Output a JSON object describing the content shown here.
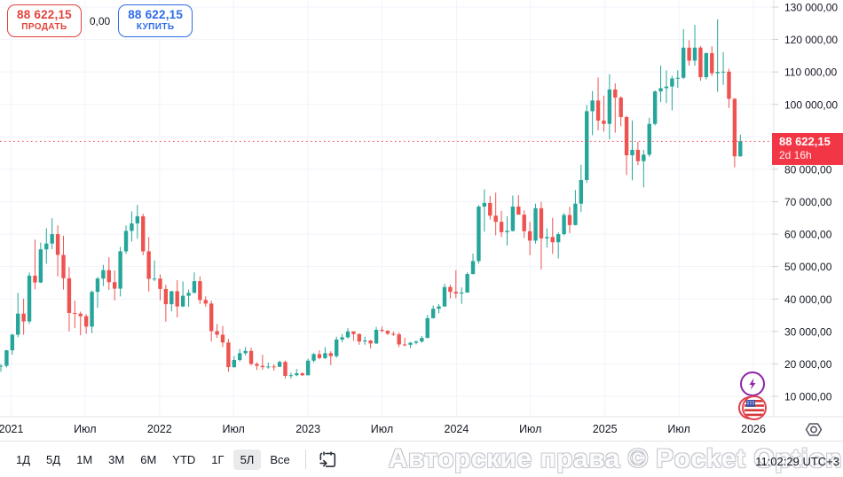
{
  "header": {
    "sell_price": "88 622,15",
    "sell_label": "ПРОДАТЬ",
    "spread": "0,00",
    "buy_price": "88 622,15",
    "buy_label": "КУПИТЬ"
  },
  "price_label": {
    "price": "88 622,15",
    "countdown": "2d 16h"
  },
  "watermark": "Авторские права © Pocket Option",
  "clock": "11:02:29 UTC+3",
  "toolbar": {
    "ranges": [
      "1Д",
      "5Д",
      "1М",
      "3М",
      "6М",
      "YTD",
      "1Г",
      "5Л",
      "Все"
    ],
    "selected": "5Л"
  },
  "icons": {
    "calendar": "goto-date-calendar-arrow",
    "gear": "axis-settings-hexagon",
    "lightning": "economic-event-lightning",
    "flag": "us-flag-news-event"
  },
  "colors": {
    "up": "#26a69a",
    "down": "#ef5350",
    "price_line": "#f23645",
    "badge_bg": "#f23645",
    "sell": "#e0433c",
    "buy": "#2e6ce6",
    "grid": "#f0f3fa",
    "axis_text": "#131722",
    "border": "#e0e3eb"
  },
  "chart_data": {
    "type": "candlestick",
    "symbol_hint": "BTC/USD weekly, 5-year range",
    "y_axis": {
      "min": 10000,
      "max": 130000,
      "step": 10000
    },
    "x_ticks": [
      {
        "label": "2021",
        "idx": 1.8
      },
      {
        "label": "Июл",
        "idx": 14.8
      },
      {
        "label": "2022",
        "idx": 27.9
      },
      {
        "label": "Июл",
        "idx": 40.9
      },
      {
        "label": "2023",
        "idx": 54.0
      },
      {
        "label": "Июл",
        "idx": 67.0
      },
      {
        "label": "2024",
        "idx": 80.1
      },
      {
        "label": "Июл",
        "idx": 93.1
      },
      {
        "label": "2025",
        "idx": 106.2
      },
      {
        "label": "Июл",
        "idx": 119.2
      },
      {
        "label": "2026",
        "idx": 132.3
      }
    ],
    "current_price": 88622.15,
    "candles": [
      [
        "2020-12-07",
        19200,
        19900,
        17600,
        19400
      ],
      [
        "2020-12-21",
        19400,
        24300,
        18900,
        24200
      ],
      [
        "2021-01-04",
        24200,
        29300,
        22800,
        29000
      ],
      [
        "2021-01-18",
        29000,
        41900,
        28200,
        35500
      ],
      [
        "2021-02-01",
        35500,
        40100,
        29000,
        33100
      ],
      [
        "2021-02-15",
        33100,
        48200,
        32300,
        47200
      ],
      [
        "2021-03-01",
        47200,
        58300,
        43000,
        45100
      ],
      [
        "2021-03-15",
        45100,
        57400,
        44900,
        55300
      ],
      [
        "2021-03-29",
        55300,
        61800,
        50900,
        57100
      ],
      [
        "2021-04-12",
        57100,
        64900,
        55400,
        60000
      ],
      [
        "2021-04-26",
        60000,
        62700,
        47000,
        53600
      ],
      [
        "2021-05-10",
        53600,
        59500,
        42900,
        46400
      ],
      [
        "2021-05-24",
        46400,
        49800,
        30000,
        35700
      ],
      [
        "2021-06-07",
        35700,
        39500,
        31000,
        35500
      ],
      [
        "2021-06-21",
        35500,
        36100,
        28800,
        34700
      ],
      [
        "2021-07-05",
        34700,
        35300,
        29300,
        31500
      ],
      [
        "2021-07-19",
        31500,
        42600,
        29500,
        42200
      ],
      [
        "2021-08-02",
        42200,
        46800,
        37300,
        46300
      ],
      [
        "2021-08-16",
        46300,
        50500,
        44000,
        48900
      ],
      [
        "2021-08-30",
        48900,
        52900,
        42800,
        45200
      ],
      [
        "2021-09-13",
        45200,
        48800,
        39600,
        43200
      ],
      [
        "2021-09-27",
        43200,
        56100,
        40800,
        54700
      ],
      [
        "2021-10-11",
        54700,
        62700,
        53900,
        61000
      ],
      [
        "2021-10-25",
        61000,
        67000,
        57700,
        63300
      ],
      [
        "2021-11-08",
        63300,
        69000,
        58600,
        65500
      ],
      [
        "2021-11-22",
        65500,
        66300,
        53500,
        54700
      ],
      [
        "2021-12-06",
        54700,
        59100,
        42300,
        46200
      ],
      [
        "2021-12-20",
        46200,
        51900,
        45500,
        46300
      ],
      [
        "2022-01-03",
        46300,
        47600,
        39600,
        43100
      ],
      [
        "2022-01-17",
        43100,
        44400,
        33000,
        38400
      ],
      [
        "2022-01-31",
        38400,
        42500,
        36200,
        42400
      ],
      [
        "2022-02-14",
        42400,
        45800,
        34300,
        37700
      ],
      [
        "2022-02-28",
        37700,
        45400,
        37500,
        41000
      ],
      [
        "2022-03-14",
        41000,
        42900,
        37600,
        41900
      ],
      [
        "2022-03-28",
        41900,
        48200,
        41800,
        45500
      ],
      [
        "2022-04-11",
        45500,
        47000,
        38500,
        39700
      ],
      [
        "2022-04-25",
        39700,
        40800,
        37600,
        38600
      ],
      [
        "2022-05-09",
        38600,
        39500,
        26900,
        30100
      ],
      [
        "2022-05-23",
        30100,
        32300,
        28000,
        29000
      ],
      [
        "2022-06-06",
        29000,
        31700,
        25200,
        26600
      ],
      [
        "2022-06-20",
        26600,
        27700,
        17600,
        19000
      ],
      [
        "2022-07-04",
        19000,
        22400,
        18800,
        21200
      ],
      [
        "2022-07-18",
        21200,
        24600,
        20700,
        23300
      ],
      [
        "2022-08-01",
        23300,
        25200,
        22600,
        24000
      ],
      [
        "2022-08-15",
        24000,
        25000,
        19500,
        20000
      ],
      [
        "2022-08-29",
        20000,
        20500,
        18100,
        19400
      ],
      [
        "2022-09-12",
        19400,
        22800,
        18200,
        19000
      ],
      [
        "2022-09-26",
        19000,
        20400,
        18500,
        19200
      ],
      [
        "2022-10-10",
        19200,
        19900,
        17900,
        19100
      ],
      [
        "2022-10-24",
        19100,
        21000,
        19000,
        20600
      ],
      [
        "2022-11-07",
        20600,
        21000,
        15500,
        16300
      ],
      [
        "2022-11-21",
        16300,
        17300,
        15500,
        16500
      ],
      [
        "2022-12-05",
        16500,
        18400,
        16200,
        17100
      ],
      [
        "2022-12-19",
        17100,
        17400,
        16300,
        16500
      ],
      [
        "2023-01-02",
        16500,
        21600,
        16400,
        21000
      ],
      [
        "2023-01-16",
        21000,
        23400,
        20400,
        23000
      ],
      [
        "2023-01-30",
        23000,
        24200,
        21400,
        21800
      ],
      [
        "2023-02-13",
        21800,
        25200,
        21500,
        23300
      ],
      [
        "2023-02-27",
        23300,
        23900,
        19600,
        22400
      ],
      [
        "2023-03-13",
        22400,
        28400,
        21900,
        27500
      ],
      [
        "2023-03-27",
        27500,
        29200,
        26700,
        28200
      ],
      [
        "2023-04-10",
        28200,
        31000,
        27800,
        30000
      ],
      [
        "2023-04-24",
        30000,
        30100,
        27100,
        29200
      ],
      [
        "2023-05-08",
        29200,
        29400,
        25900,
        26900
      ],
      [
        "2023-05-22",
        26900,
        28400,
        25900,
        27200
      ],
      [
        "2023-06-05",
        27200,
        27400,
        24800,
        26300
      ],
      [
        "2023-06-19",
        26300,
        31400,
        26100,
        30500
      ],
      [
        "2023-07-03",
        30500,
        31500,
        29700,
        30200
      ],
      [
        "2023-07-17",
        30200,
        30400,
        28900,
        29300
      ],
      [
        "2023-07-31",
        29300,
        30000,
        28600,
        29100
      ],
      [
        "2023-08-14",
        29100,
        29700,
        25200,
        26000
      ],
      [
        "2023-08-28",
        26000,
        28100,
        25400,
        25900
      ],
      [
        "2023-09-11",
        25900,
        26800,
        24900,
        26500
      ],
      [
        "2023-09-25",
        26500,
        27200,
        26000,
        26900
      ],
      [
        "2023-10-09",
        26900,
        28600,
        26500,
        28000
      ],
      [
        "2023-10-23",
        28000,
        35100,
        27900,
        34100
      ],
      [
        "2023-11-06",
        34100,
        38000,
        34000,
        37000
      ],
      [
        "2023-11-20",
        37000,
        38400,
        35600,
        37700
      ],
      [
        "2023-12-04",
        37700,
        44700,
        37600,
        43700
      ],
      [
        "2023-12-18",
        43700,
        44400,
        40200,
        42200
      ],
      [
        "2024-01-01",
        42200,
        48900,
        40200,
        41700
      ],
      [
        "2024-01-15",
        41700,
        43600,
        38500,
        42000
      ],
      [
        "2024-01-29",
        42000,
        48200,
        41900,
        47700
      ],
      [
        "2024-02-12",
        47700,
        54000,
        47600,
        51700
      ],
      [
        "2024-02-26",
        51700,
        69000,
        50900,
        68500
      ],
      [
        "2024-03-11",
        68500,
        73800,
        60800,
        69600
      ],
      [
        "2024-03-25",
        69600,
        71800,
        64500,
        65700
      ],
      [
        "2024-04-08",
        65700,
        72800,
        59600,
        63800
      ],
      [
        "2024-04-22",
        63800,
        67200,
        59100,
        60600
      ],
      [
        "2024-05-06",
        60600,
        65500,
        56500,
        61000
      ],
      [
        "2024-05-20",
        61000,
        71900,
        60800,
        68500
      ],
      [
        "2024-06-03",
        68500,
        72000,
        66000,
        66000
      ],
      [
        "2024-06-17",
        66000,
        67300,
        58800,
        60900
      ],
      [
        "2024-07-01",
        60900,
        63800,
        53500,
        58000
      ],
      [
        "2024-07-15",
        58000,
        69400,
        57100,
        68000
      ],
      [
        "2024-07-29",
        68000,
        70000,
        49100,
        58700
      ],
      [
        "2024-08-12",
        58700,
        61800,
        55900,
        59100
      ],
      [
        "2024-08-26",
        59100,
        65000,
        53900,
        57500
      ],
      [
        "2024-09-09",
        57500,
        60600,
        52500,
        60000
      ],
      [
        "2024-09-23",
        60000,
        66500,
        59600,
        65900
      ],
      [
        "2024-10-07",
        65900,
        68400,
        60300,
        62800
      ],
      [
        "2024-10-21",
        62800,
        73600,
        62700,
        69400
      ],
      [
        "2024-11-04",
        69400,
        81400,
        66800,
        76700
      ],
      [
        "2024-11-18",
        76700,
        99800,
        75800,
        97900
      ],
      [
        "2024-12-02",
        97900,
        104100,
        90500,
        101200
      ],
      [
        "2024-12-16",
        101200,
        108300,
        92000,
        95000
      ],
      [
        "2024-12-30",
        95000,
        102700,
        91600,
        94000
      ],
      [
        "2025-01-13",
        94000,
        109300,
        89200,
        104600
      ],
      [
        "2025-01-27",
        104600,
        106500,
        91300,
        102100
      ],
      [
        "2025-02-10",
        102100,
        102500,
        93300,
        96100
      ],
      [
        "2025-02-24",
        96100,
        96500,
        78200,
        84300
      ],
      [
        "2025-03-10",
        84300,
        95000,
        76600,
        86000
      ],
      [
        "2025-03-24",
        86000,
        88500,
        81300,
        82500
      ],
      [
        "2025-04-07",
        82500,
        86000,
        74400,
        84500
      ],
      [
        "2025-04-21",
        84500,
        95900,
        83900,
        94000
      ],
      [
        "2025-05-05",
        94000,
        104300,
        93500,
        104000
      ],
      [
        "2025-05-19",
        104000,
        112000,
        100700,
        105000
      ],
      [
        "2025-06-02",
        105000,
        110500,
        100400,
        105500
      ],
      [
        "2025-06-16",
        105500,
        108800,
        98200,
        108000
      ],
      [
        "2025-06-30",
        108000,
        110500,
        105100,
        108200
      ],
      [
        "2025-07-14",
        108200,
        123200,
        107800,
        117500
      ],
      [
        "2025-07-28",
        117500,
        119800,
        112000,
        113500
      ],
      [
        "2025-08-11",
        113500,
        124500,
        111900,
        117500
      ],
      [
        "2025-08-25",
        117500,
        118000,
        107300,
        108400
      ],
      [
        "2025-09-08",
        108400,
        116000,
        107700,
        115800
      ],
      [
        "2025-09-22",
        115800,
        117900,
        108700,
        109600
      ],
      [
        "2025-10-06",
        109600,
        126200,
        103900,
        110000
      ],
      [
        "2025-10-20",
        110000,
        116100,
        106000,
        110100
      ],
      [
        "2025-11-03",
        110100,
        111000,
        98900,
        101700
      ],
      [
        "2025-11-17",
        101700,
        102000,
        80600,
        84000
      ],
      [
        "2025-12-01",
        84000,
        90700,
        83900,
        88622.15
      ]
    ]
  }
}
